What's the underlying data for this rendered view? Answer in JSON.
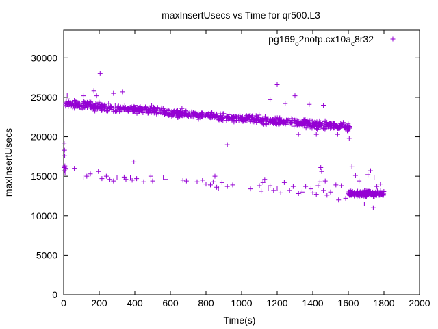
{
  "chart_data": {
    "type": "scatter",
    "title": "maxInsertUsecs vs Time for qr500.L3",
    "xlabel": "Time(s)",
    "ylabel": "maxInsertUsecs",
    "xlim": [
      0,
      2000
    ],
    "ylim": [
      0,
      33500
    ],
    "xticks": [
      0,
      200,
      400,
      600,
      800,
      1000,
      1200,
      1400,
      1600,
      1800,
      2000
    ],
    "yticks": [
      0,
      5000,
      10000,
      15000,
      20000,
      25000,
      30000
    ],
    "legend_position": "top-right",
    "grid": false,
    "series": [
      {
        "name": "pg169",
        "name_sub": "o",
        "name_mid": "2nofp.cx10a",
        "name_sub2": "c",
        "name_end": "8r32",
        "color": "#9400d3",
        "marker": "plus",
        "bands": [
          {
            "x_range": [
              10,
              1610
            ],
            "y_start": 24200,
            "y_end": 21200,
            "spread": 700,
            "count": 900
          },
          {
            "x_range": [
              1600,
              1800
            ],
            "y_start": 12800,
            "y_end": 12800,
            "spread": 500,
            "count": 200
          }
        ],
        "points": [
          [
            2,
            22000
          ],
          [
            3,
            19200
          ],
          [
            5,
            18300
          ],
          [
            6,
            17600
          ],
          [
            4,
            16100
          ],
          [
            5,
            15700
          ],
          [
            7,
            16300
          ],
          [
            8,
            15400
          ],
          [
            10,
            15900
          ],
          [
            12,
            16000
          ],
          [
            20,
            25300
          ],
          [
            25,
            24800
          ],
          [
            30,
            24300
          ],
          [
            60,
            24600
          ],
          [
            110,
            25200
          ],
          [
            170,
            25800
          ],
          [
            185,
            25200
          ],
          [
            205,
            28000
          ],
          [
            280,
            25500
          ],
          [
            330,
            25700
          ],
          [
            920,
            19000
          ],
          [
            1200,
            26600
          ],
          [
            1300,
            25200
          ],
          [
            1160,
            24700
          ],
          [
            1245,
            24200
          ],
          [
            1380,
            24100
          ],
          [
            1460,
            24000
          ],
          [
            1320,
            20300
          ],
          [
            1420,
            20300
          ],
          [
            1540,
            20300
          ],
          [
            1605,
            19800
          ],
          [
            60,
            16000
          ],
          [
            110,
            14800
          ],
          [
            130,
            15000
          ],
          [
            150,
            15300
          ],
          [
            195,
            15600
          ],
          [
            215,
            14700
          ],
          [
            240,
            15000
          ],
          [
            260,
            14600
          ],
          [
            280,
            14400
          ],
          [
            300,
            14800
          ],
          [
            340,
            14900
          ],
          [
            350,
            14600
          ],
          [
            375,
            14800
          ],
          [
            385,
            14500
          ],
          [
            395,
            16800
          ],
          [
            410,
            14700
          ],
          [
            450,
            14300
          ],
          [
            490,
            15000
          ],
          [
            500,
            14400
          ],
          [
            560,
            14800
          ],
          [
            575,
            14600
          ],
          [
            670,
            14500
          ],
          [
            690,
            14400
          ],
          [
            750,
            14300
          ],
          [
            780,
            14500
          ],
          [
            800,
            14000
          ],
          [
            825,
            13900
          ],
          [
            840,
            14300
          ],
          [
            850,
            15000
          ],
          [
            860,
            13600
          ],
          [
            870,
            13500
          ],
          [
            890,
            14200
          ],
          [
            920,
            13700
          ],
          [
            950,
            13900
          ],
          [
            1050,
            13400
          ],
          [
            1100,
            13800
          ],
          [
            1110,
            13100
          ],
          [
            1120,
            14200
          ],
          [
            1130,
            14600
          ],
          [
            1150,
            13500
          ],
          [
            1160,
            13800
          ],
          [
            1180,
            13200
          ],
          [
            1200,
            13500
          ],
          [
            1220,
            12900
          ],
          [
            1240,
            14200
          ],
          [
            1270,
            13200
          ],
          [
            1290,
            13700
          ],
          [
            1320,
            12800
          ],
          [
            1340,
            13000
          ],
          [
            1360,
            13700
          ],
          [
            1390,
            13400
          ],
          [
            1400,
            12900
          ],
          [
            1420,
            12700
          ],
          [
            1430,
            13800
          ],
          [
            1440,
            14300
          ],
          [
            1445,
            16100
          ],
          [
            1450,
            15600
          ],
          [
            1460,
            13200
          ],
          [
            1470,
            14400
          ],
          [
            1480,
            12600
          ],
          [
            1500,
            13000
          ],
          [
            1530,
            13900
          ],
          [
            1545,
            12000
          ],
          [
            1560,
            13800
          ],
          [
            1585,
            12200
          ],
          [
            1620,
            16200
          ],
          [
            1640,
            15100
          ],
          [
            1660,
            14400
          ],
          [
            1710,
            15200
          ],
          [
            1725,
            15700
          ],
          [
            1745,
            14800
          ],
          [
            1690,
            11500
          ],
          [
            1740,
            11000
          ],
          [
            1780,
            14000
          ],
          [
            1760,
            13700
          ]
        ]
      }
    ]
  }
}
